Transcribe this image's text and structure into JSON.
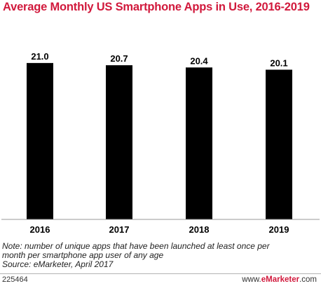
{
  "title": "Average Monthly US Smartphone Apps in Use, 2016-2019",
  "chart_data": {
    "type": "bar",
    "categories": [
      "2016",
      "2017",
      "2018",
      "2019"
    ],
    "values": [
      21.0,
      20.7,
      20.4,
      20.1
    ],
    "data_labels": [
      "21.0",
      "20.7",
      "20.4",
      "20.1"
    ],
    "title": "Average Monthly US Smartphone Apps in Use, 2016-2019",
    "xlabel": "",
    "ylabel": "",
    "ylim": [
      0,
      22.4
    ],
    "grid": false,
    "bar_color": "#000000"
  },
  "notes": {
    "note_line1": "Note: number of unique apps that have been launched at least once per",
    "note_line2": "month per smartphone app user of any age",
    "source": "Source: eMarketer, April 2017"
  },
  "footer": {
    "chart_id": "225464",
    "brand_prefix": "www.",
    "brand_name": "eMarketer",
    "brand_suffix": ".com",
    "brand_color": "#d1193c"
  }
}
